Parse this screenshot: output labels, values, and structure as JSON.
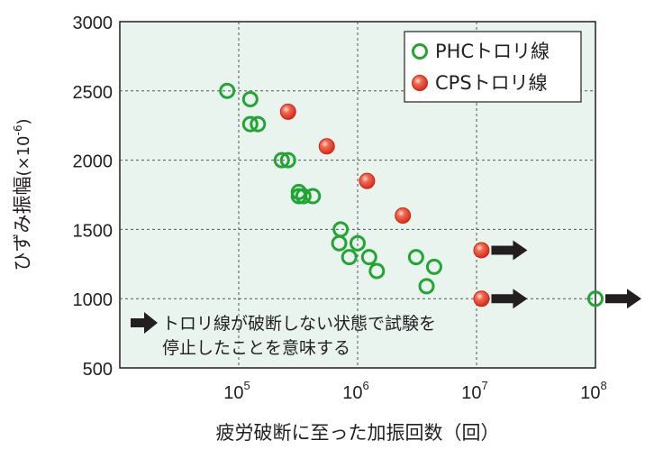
{
  "colors": {
    "plot_bg": "#eaf4ef",
    "phc": "#22a534",
    "cps": "#e63322",
    "arrow": "#231f20",
    "grid": "#555555"
  },
  "chart_data": {
    "type": "scatter",
    "title": "",
    "xlabel": "疲労破断に至った加振回数（回）",
    "ylabel": "ひずみ振幅",
    "ylabel_unit": "(×10",
    "ylabel_unit_exp": "-6",
    "ylabel_unit_close": ")",
    "x_scale": "log",
    "xlim": [
      10000,
      100000000
    ],
    "ylim": [
      500,
      3000
    ],
    "grid": true,
    "legend_position": "top-right",
    "yticks": [
      {
        "value": 500,
        "label": "500"
      },
      {
        "value": 1000,
        "label": "1000"
      },
      {
        "value": 1500,
        "label": "1500"
      },
      {
        "value": 2000,
        "label": "2000"
      },
      {
        "value": 2500,
        "label": "2500"
      },
      {
        "value": 3000,
        "label": "3000"
      }
    ],
    "xticks": [
      {
        "value": 100000,
        "base": "10",
        "exp": "5"
      },
      {
        "value": 1000000,
        "base": "10",
        "exp": "6"
      },
      {
        "value": 10000000,
        "base": "10",
        "exp": "7"
      },
      {
        "value": 100000000,
        "base": "10",
        "exp": "8"
      }
    ],
    "series": [
      {
        "name": "PHCトロリ線",
        "marker": "open-circle",
        "points": [
          [
            80000,
            2500
          ],
          [
            125000,
            2440
          ],
          [
            125000,
            2260
          ],
          [
            145000,
            2260
          ],
          [
            230000,
            2000
          ],
          [
            260000,
            2000
          ],
          [
            320000,
            1770
          ],
          [
            320000,
            1740
          ],
          [
            350000,
            1740
          ],
          [
            420000,
            1740
          ],
          [
            720000,
            1500
          ],
          [
            700000,
            1400
          ],
          [
            850000,
            1300
          ],
          [
            1000000,
            1400
          ],
          [
            1250000,
            1300
          ],
          [
            1450000,
            1200
          ],
          [
            3100000,
            1300
          ],
          [
            3800000,
            1090
          ],
          [
            4400000,
            1230
          ],
          [
            100000000,
            1000
          ]
        ]
      },
      {
        "name": "CPSトロリ線",
        "marker": "filled-circle",
        "points": [
          [
            260000,
            2350
          ],
          [
            550000,
            2100
          ],
          [
            1200000,
            1850
          ],
          [
            2400000,
            1600
          ],
          [
            11000000,
            1350
          ],
          [
            11000000,
            1000
          ]
        ]
      }
    ],
    "runouts": [
      [
        11000000,
        1350
      ],
      [
        11000000,
        1000
      ],
      [
        100000000,
        1000
      ]
    ],
    "annotation": {
      "arrow_symbol": "➡",
      "line1": "トロリ線が破断しない状態で試験を",
      "line2": "停止したことを意味する"
    }
  }
}
